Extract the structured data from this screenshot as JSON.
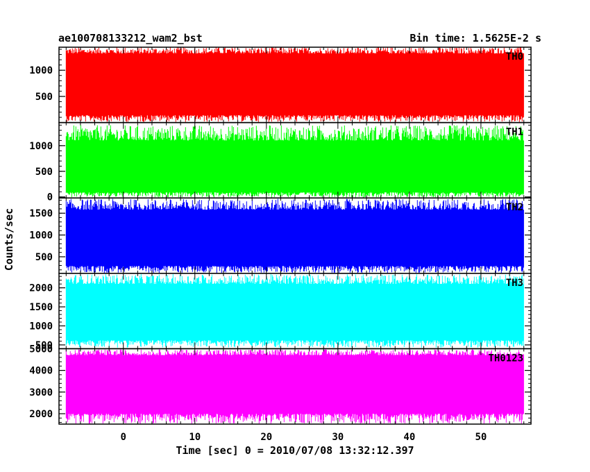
{
  "header": {
    "title": "ae100708133212_wam2_bst",
    "bin_time": "Bin time: 1.5625E-2 s"
  },
  "chart_data": {
    "type": "line",
    "shared_ylabel": "Counts/sec",
    "xlabel": "Time [sec] 0 = 2010/07/08 13:32:12.397",
    "xlim": [
      -9,
      57
    ],
    "data_range": [
      -8,
      56
    ],
    "xticks": [
      0,
      10,
      20,
      30,
      40,
      50
    ],
    "panels": [
      {
        "name": "TH0",
        "color": "#ff0000",
        "ylim": [
          0,
          1440
        ],
        "yticks": [
          500,
          1000
        ],
        "baseline": 740,
        "band_low": 140,
        "band_high": 1320,
        "spike_max": 1440,
        "spike_min": 10
      },
      {
        "name": "TH1",
        "color": "#00ff00",
        "ylim": [
          -20,
          1450
        ],
        "yticks": [
          0,
          500,
          1000
        ],
        "baseline": 590,
        "band_low": 90,
        "band_high": 1100,
        "spike_max": 1400,
        "spike_min": -10
      },
      {
        "name": "TH2",
        "color": "#0000ff",
        "ylim": [
          120,
          1850
        ],
        "yticks": [
          500,
          1000,
          1500
        ],
        "baseline": 870,
        "band_low": 290,
        "band_high": 1580,
        "spike_max": 1830,
        "spike_min": 130
      },
      {
        "name": "TH3",
        "color": "#00ffff",
        "ylim": [
          400,
          2380
        ],
        "yticks": [
          500,
          1000,
          1500,
          2000
        ],
        "baseline": 1180,
        "band_low": 620,
        "band_high": 2100,
        "spike_max": 2360,
        "spike_min": 430
      },
      {
        "name": "TH0123",
        "color": "#ff00ff",
        "ylim": [
          1520,
          5000
        ],
        "yticks": [
          2000,
          3000,
          4000,
          5000
        ],
        "baseline": 3330,
        "band_low": 2000,
        "band_high": 4700,
        "spike_max": 4970,
        "spike_min": 1540
      }
    ]
  }
}
